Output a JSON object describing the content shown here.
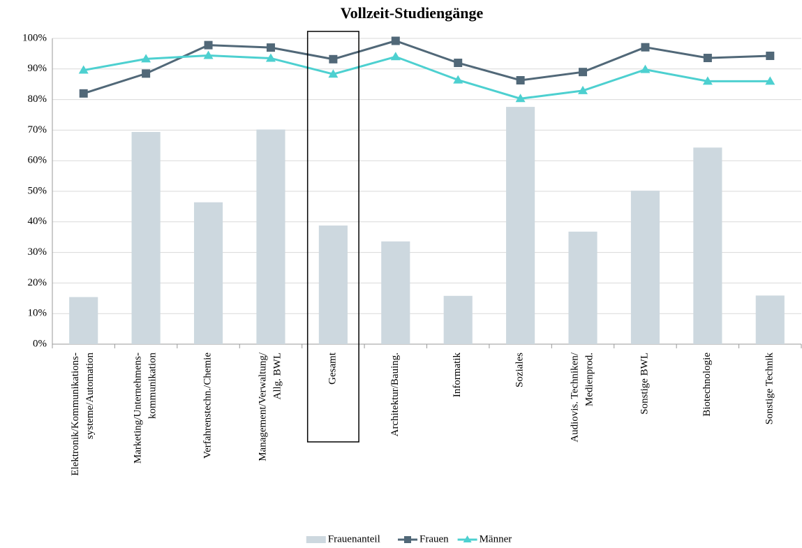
{
  "chart_data": {
    "type": "bar_line",
    "title": "Vollzeit-Studiengänge",
    "categories": [
      "Elektronik/Kommunikations-\nsysteme/Automation",
      "Marketing/Unternehmens-\nkommunikation",
      "Verfahrenstechn./Chemie",
      "Management/Verwaltung/\nAllg. BWL",
      "Gesamt",
      "Architektur/Bauing.",
      "Informatik",
      "Soziales",
      "Audiovis. Techniken/\nMedienprod.",
      "Sonstige BWL",
      "Biotechnologie",
      "Sonstige Technik"
    ],
    "series": [
      {
        "name": "Frauenanteil",
        "type": "bar",
        "color": "#cdd8df",
        "values": [
          15.4,
          69.4,
          46.4,
          70.2,
          38.8,
          33.6,
          15.8,
          77.6,
          36.8,
          50.2,
          64.3,
          15.9
        ]
      },
      {
        "name": "Frauen",
        "type": "line",
        "marker": "square",
        "color": "#516878",
        "values": [
          82,
          88.5,
          97.8,
          97,
          93.2,
          99.2,
          92,
          86.3,
          89,
          97.1,
          93.6,
          94.3
        ]
      },
      {
        "name": "Männer",
        "type": "line",
        "marker": "triangle",
        "color": "#4dd0d0",
        "values": [
          89.6,
          93.3,
          94.4,
          93.5,
          88.3,
          94,
          86.4,
          80.3,
          82.9,
          89.8,
          86,
          86
        ]
      }
    ],
    "ylim": [
      0,
      100
    ],
    "yticks": [
      {
        "value": 0,
        "label": "0%"
      },
      {
        "value": 10,
        "label": "10%"
      },
      {
        "value": 20,
        "label": "20%"
      },
      {
        "value": 30,
        "label": "30%"
      },
      {
        "value": 40,
        "label": "40%"
      },
      {
        "value": 50,
        "label": "50%"
      },
      {
        "value": 60,
        "label": "60%"
      },
      {
        "value": 70,
        "label": "70%"
      },
      {
        "value": 80,
        "label": "80%"
      },
      {
        "value": 90,
        "label": "90%"
      },
      {
        "value": 100,
        "label": "100%"
      }
    ],
    "grid": true,
    "highlight": 4,
    "legend": "bottom"
  }
}
